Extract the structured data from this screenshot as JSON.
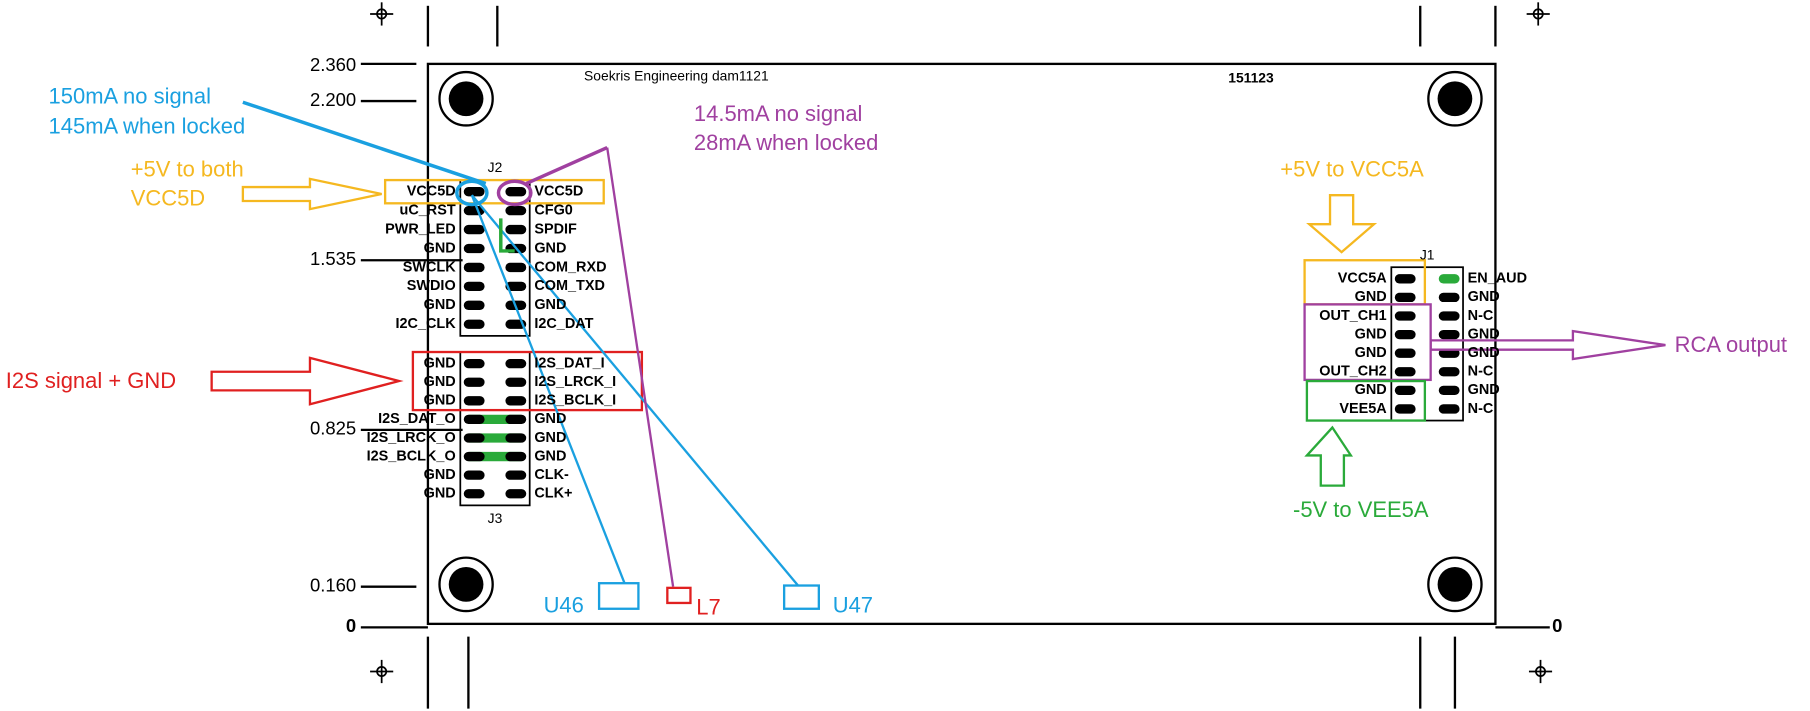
{
  "dimensions": {
    "left": [
      "2.360",
      "2.200",
      "1.535",
      "0.825",
      "0.160",
      "0"
    ],
    "right": [
      "0"
    ]
  },
  "board": {
    "title": "Soekris Engineering  dam1121",
    "code": "151123"
  },
  "connectors": [
    {
      "label": "J2",
      "left": [
        "VCC5D",
        "uC_RST",
        "PWR_LED",
        "GND",
        "SWCLK",
        "SWDIO",
        "GND",
        "I2C_CLK"
      ],
      "right": [
        "VCC5D",
        "CFG0",
        "SPDIF",
        "GND",
        "COM_RXD",
        "COM_TXD",
        "GND",
        "I2C_DAT"
      ]
    },
    {
      "label": "J3",
      "left": [
        "GND",
        "GND",
        "GND",
        "I2S_DAT_O",
        "I2S_LRCK_O",
        "I2S_BCLK_O",
        "GND",
        "GND"
      ],
      "right": [
        "I2S_DAT_I",
        "I2S_LRCK_I",
        "I2S_BCLK_I",
        "GND",
        "GND",
        "GND",
        "CLK-",
        "CLK+"
      ]
    },
    {
      "label": "J1",
      "left": [
        "VCC5A",
        "GND",
        "OUT_CH1",
        "GND",
        "GND",
        "OUT_CH2",
        "GND",
        "VEE5A"
      ],
      "right": [
        "EN_AUD",
        "GND",
        "N-C",
        "GND",
        "GND",
        "N-C",
        "GND",
        "N-C"
      ]
    }
  ],
  "annotations": [
    {
      "lines": [
        "150mA no signal",
        "145mA when locked"
      ]
    },
    {
      "lines": [
        "14.5mA no signal",
        "28mA when locked"
      ]
    },
    {
      "lines": [
        "+5V to both",
        "VCC5D"
      ]
    },
    {
      "lines": [
        "I2S signal + GND"
      ]
    },
    {
      "lines": [
        "+5V to VCC5A"
      ]
    },
    {
      "lines": [
        "-5V to VEE5A"
      ]
    },
    {
      "lines": [
        "RCA output"
      ]
    },
    {
      "lines": [
        "U46"
      ]
    },
    {
      "lines": [
        "L7"
      ]
    },
    {
      "lines": [
        "U47"
      ]
    }
  ]
}
